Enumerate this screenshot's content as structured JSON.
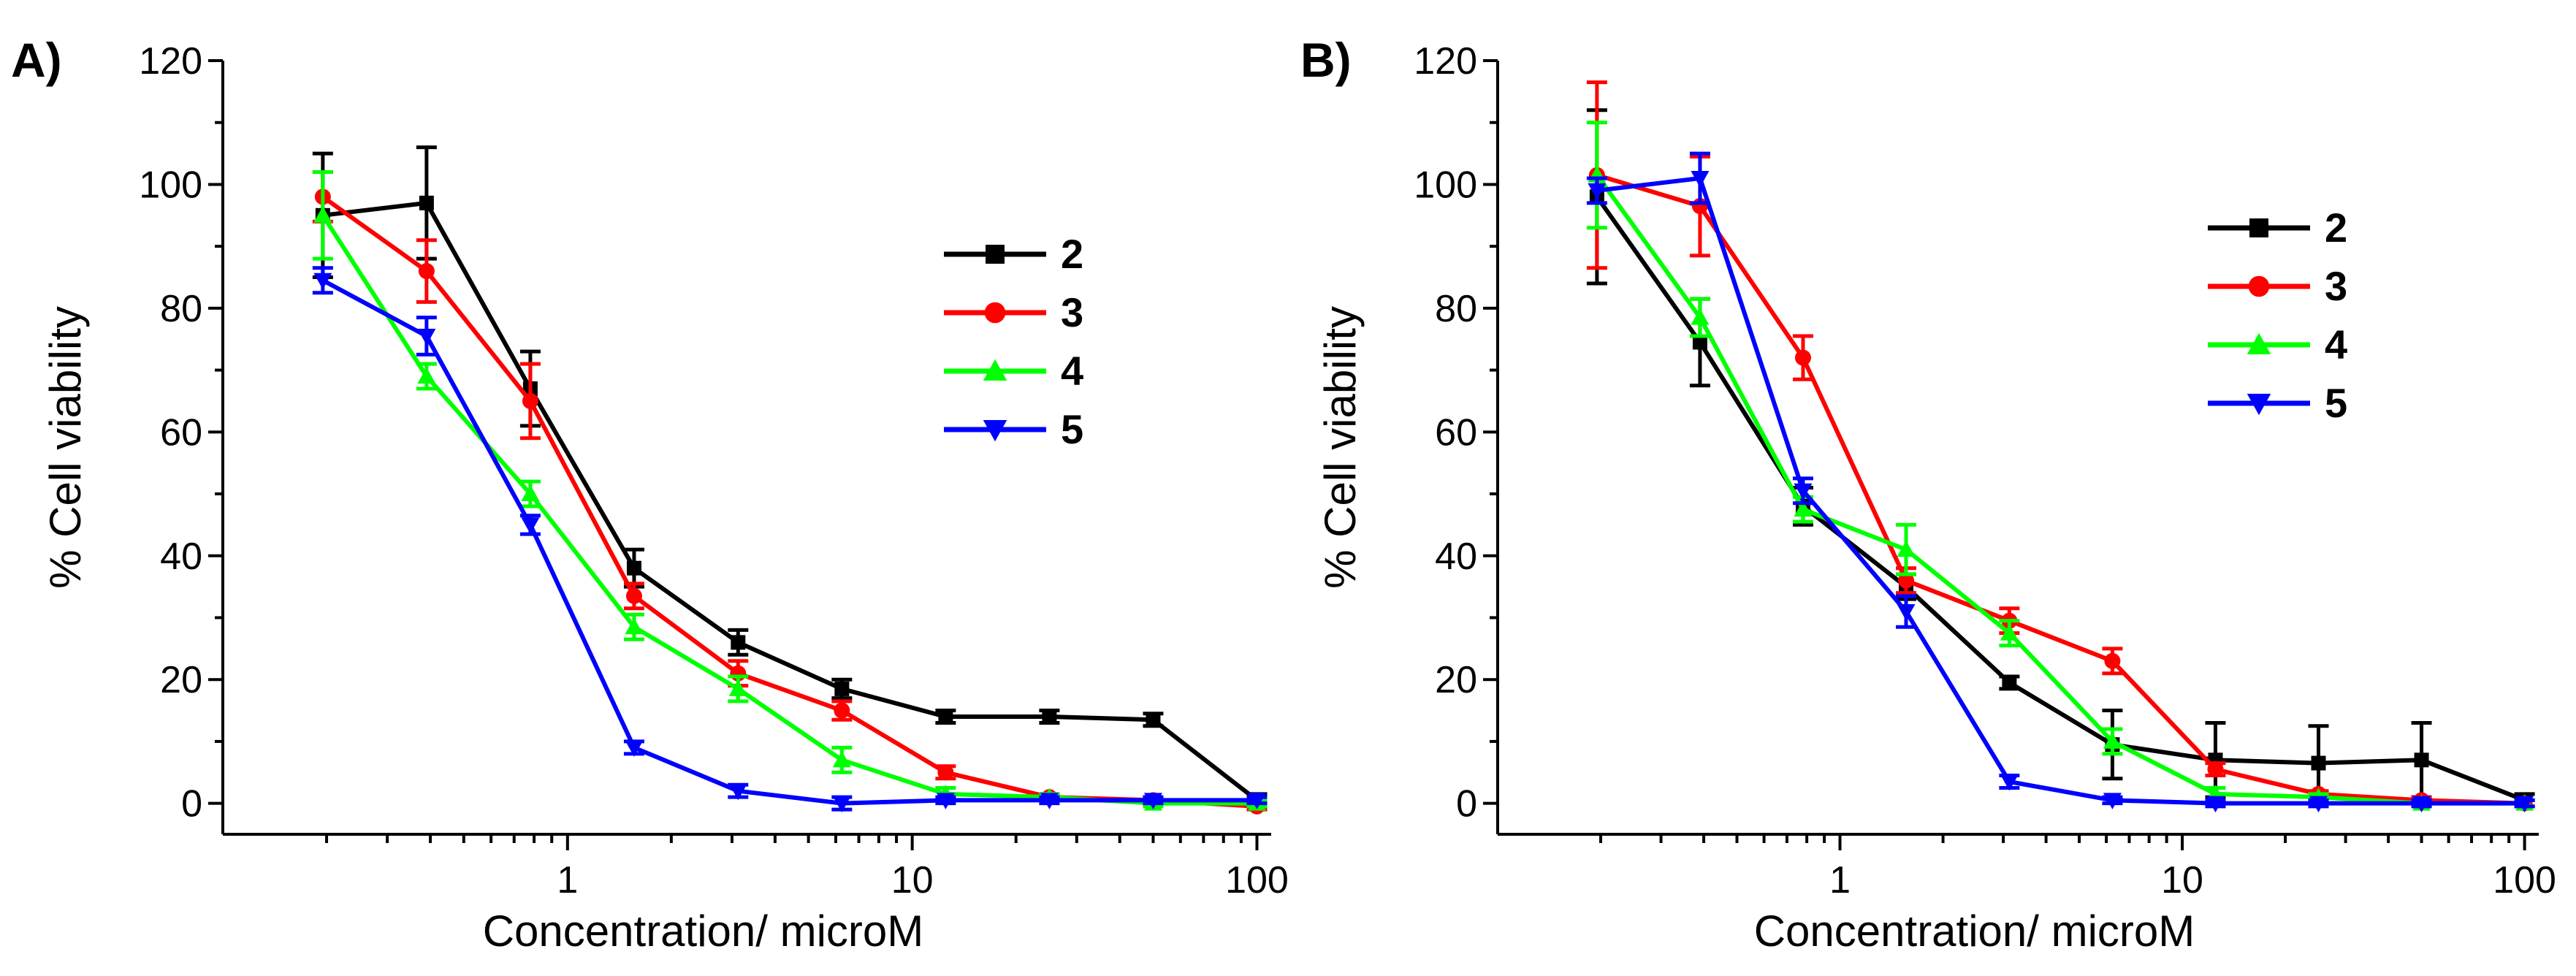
{
  "chart_data": [
    {
      "type": "line",
      "panel_label": "A)",
      "xlabel": "Concentration/ microM",
      "ylabel": "% Cell viability",
      "xscale": "log",
      "xlim": [
        0.1,
        110
      ],
      "ylim": [
        -5,
        120
      ],
      "x_ticks": [
        1,
        10,
        100
      ],
      "x_tick_labels": [
        "1",
        "10",
        "100"
      ],
      "y_ticks": [
        0,
        20,
        40,
        60,
        80,
        100,
        120
      ],
      "y_tick_labels": [
        "0",
        "20",
        "40",
        "60",
        "80",
        "100",
        "120"
      ],
      "legend_position": "right",
      "x": [
        0.195,
        0.39,
        0.78,
        1.56,
        3.125,
        6.25,
        12.5,
        25,
        50,
        100
      ],
      "series": [
        {
          "name": "2",
          "color": "#000000",
          "marker": "square",
          "values": [
            95,
            97,
            67,
            38,
            26,
            18.5,
            14,
            14,
            13.5,
            0.5
          ],
          "errors": [
            10,
            9,
            6,
            3,
            2,
            1.5,
            1,
            1,
            1,
            1
          ]
        },
        {
          "name": "3",
          "color": "#ff0000",
          "marker": "circle",
          "values": [
            98,
            86,
            65,
            33.5,
            21,
            15,
            5,
            1,
            0.5,
            -0.5
          ],
          "errors": [
            4,
            5,
            6,
            2,
            2,
            1.5,
            1,
            0.5,
            0.5,
            0.5
          ]
        },
        {
          "name": "4",
          "color": "#00ff00",
          "marker": "triangle-up",
          "values": [
            95,
            69,
            50,
            28.5,
            18.5,
            7,
            1.5,
            1,
            0,
            0
          ],
          "errors": [
            7,
            2,
            2,
            2,
            2,
            2,
            1,
            0.5,
            0.5,
            0.5
          ]
        },
        {
          "name": "5",
          "color": "#0000ff",
          "marker": "triangle-down",
          "values": [
            84.5,
            75.5,
            45,
            9,
            2,
            0,
            0.5,
            0.5,
            0.5,
            0.5
          ],
          "errors": [
            2,
            3,
            1.5,
            1,
            1,
            1,
            0.5,
            0.5,
            0.5,
            0.5
          ]
        }
      ]
    },
    {
      "type": "line",
      "panel_label": "B)",
      "xlabel": "Concentration/ microM",
      "ylabel": "% Cell viability",
      "xscale": "log",
      "xlim": [
        0.1,
        110
      ],
      "ylim": [
        -5,
        120
      ],
      "x_ticks": [
        1,
        10,
        100
      ],
      "x_tick_labels": [
        "1",
        "10",
        "100"
      ],
      "y_ticks": [
        0,
        20,
        40,
        60,
        80,
        100,
        120
      ],
      "y_tick_labels": [
        "0",
        "20",
        "40",
        "60",
        "80",
        "100",
        "120"
      ],
      "legend_position": "right",
      "x": [
        0.195,
        0.39,
        0.78,
        1.56,
        3.125,
        6.25,
        12.5,
        25,
        50,
        100
      ],
      "series": [
        {
          "name": "2",
          "color": "#000000",
          "marker": "square",
          "values": [
            98,
            74.5,
            48,
            35,
            19.5,
            9.5,
            7,
            6.5,
            7,
            0.5
          ],
          "errors": [
            14,
            7,
            3,
            2,
            1,
            5.5,
            6,
            6,
            6,
            1
          ]
        },
        {
          "name": "3",
          "color": "#ff0000",
          "marker": "circle",
          "values": [
            101.5,
            96.5,
            72,
            36,
            29.5,
            23,
            5.5,
            1.5,
            0.5,
            0
          ],
          "errors": [
            15,
            8,
            3.5,
            2,
            2,
            2,
            1,
            0.5,
            0.5,
            0.5
          ]
        },
        {
          "name": "4",
          "color": "#00ff00",
          "marker": "triangle-up",
          "values": [
            101.5,
            78.5,
            47.5,
            41,
            27.5,
            10,
            1.5,
            1,
            0,
            0
          ],
          "errors": [
            8.5,
            3,
            2,
            4,
            2,
            2,
            1,
            0.5,
            0.5,
            0.5
          ]
        },
        {
          "name": "5",
          "color": "#0000ff",
          "marker": "triangle-down",
          "values": [
            99,
            101,
            50.5,
            31,
            3.5,
            0.5,
            0,
            0,
            0,
            0
          ],
          "errors": [
            2,
            4,
            2,
            2.5,
            1,
            0.5,
            0.5,
            0.5,
            0.5,
            0.5
          ]
        }
      ]
    }
  ]
}
